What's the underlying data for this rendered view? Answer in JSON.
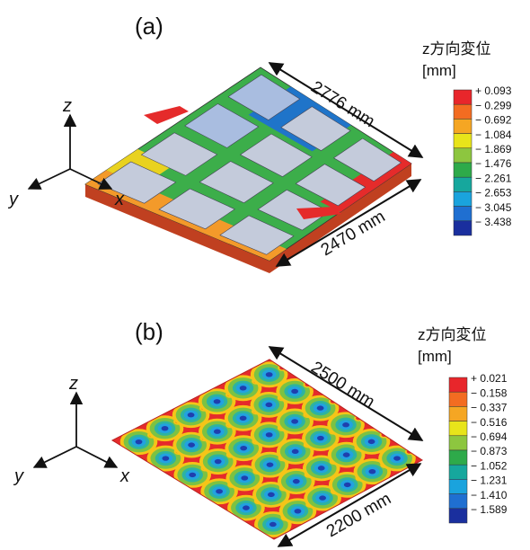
{
  "panels": [
    {
      "label": "(a)",
      "dimensions": [
        "2776 mm",
        "2470 mm"
      ],
      "axes": [
        "z",
        "y",
        "x"
      ],
      "legend": {
        "title": "z方向変位",
        "unit": "[mm]",
        "labels": [
          "+ 0.093",
          "− 0.299",
          "− 0.692",
          "− 1.084",
          "− 1.869",
          "− 1.476",
          "− 2.261",
          "− 2.653",
          "− 3.045",
          "− 3.438"
        ]
      }
    },
    {
      "label": "(b)",
      "dimensions": [
        "2500 mm",
        "2200 mm"
      ],
      "axes": [
        "z",
        "y",
        "x"
      ],
      "legend": {
        "title": "z方向変位",
        "unit": "[mm]",
        "labels": [
          "+ 0.021",
          "− 0.158",
          "− 0.337",
          "− 0.516",
          "− 0.694",
          "− 0.873",
          "− 1.052",
          "− 1.231",
          "− 1.410",
          "− 1.589"
        ]
      }
    }
  ]
}
